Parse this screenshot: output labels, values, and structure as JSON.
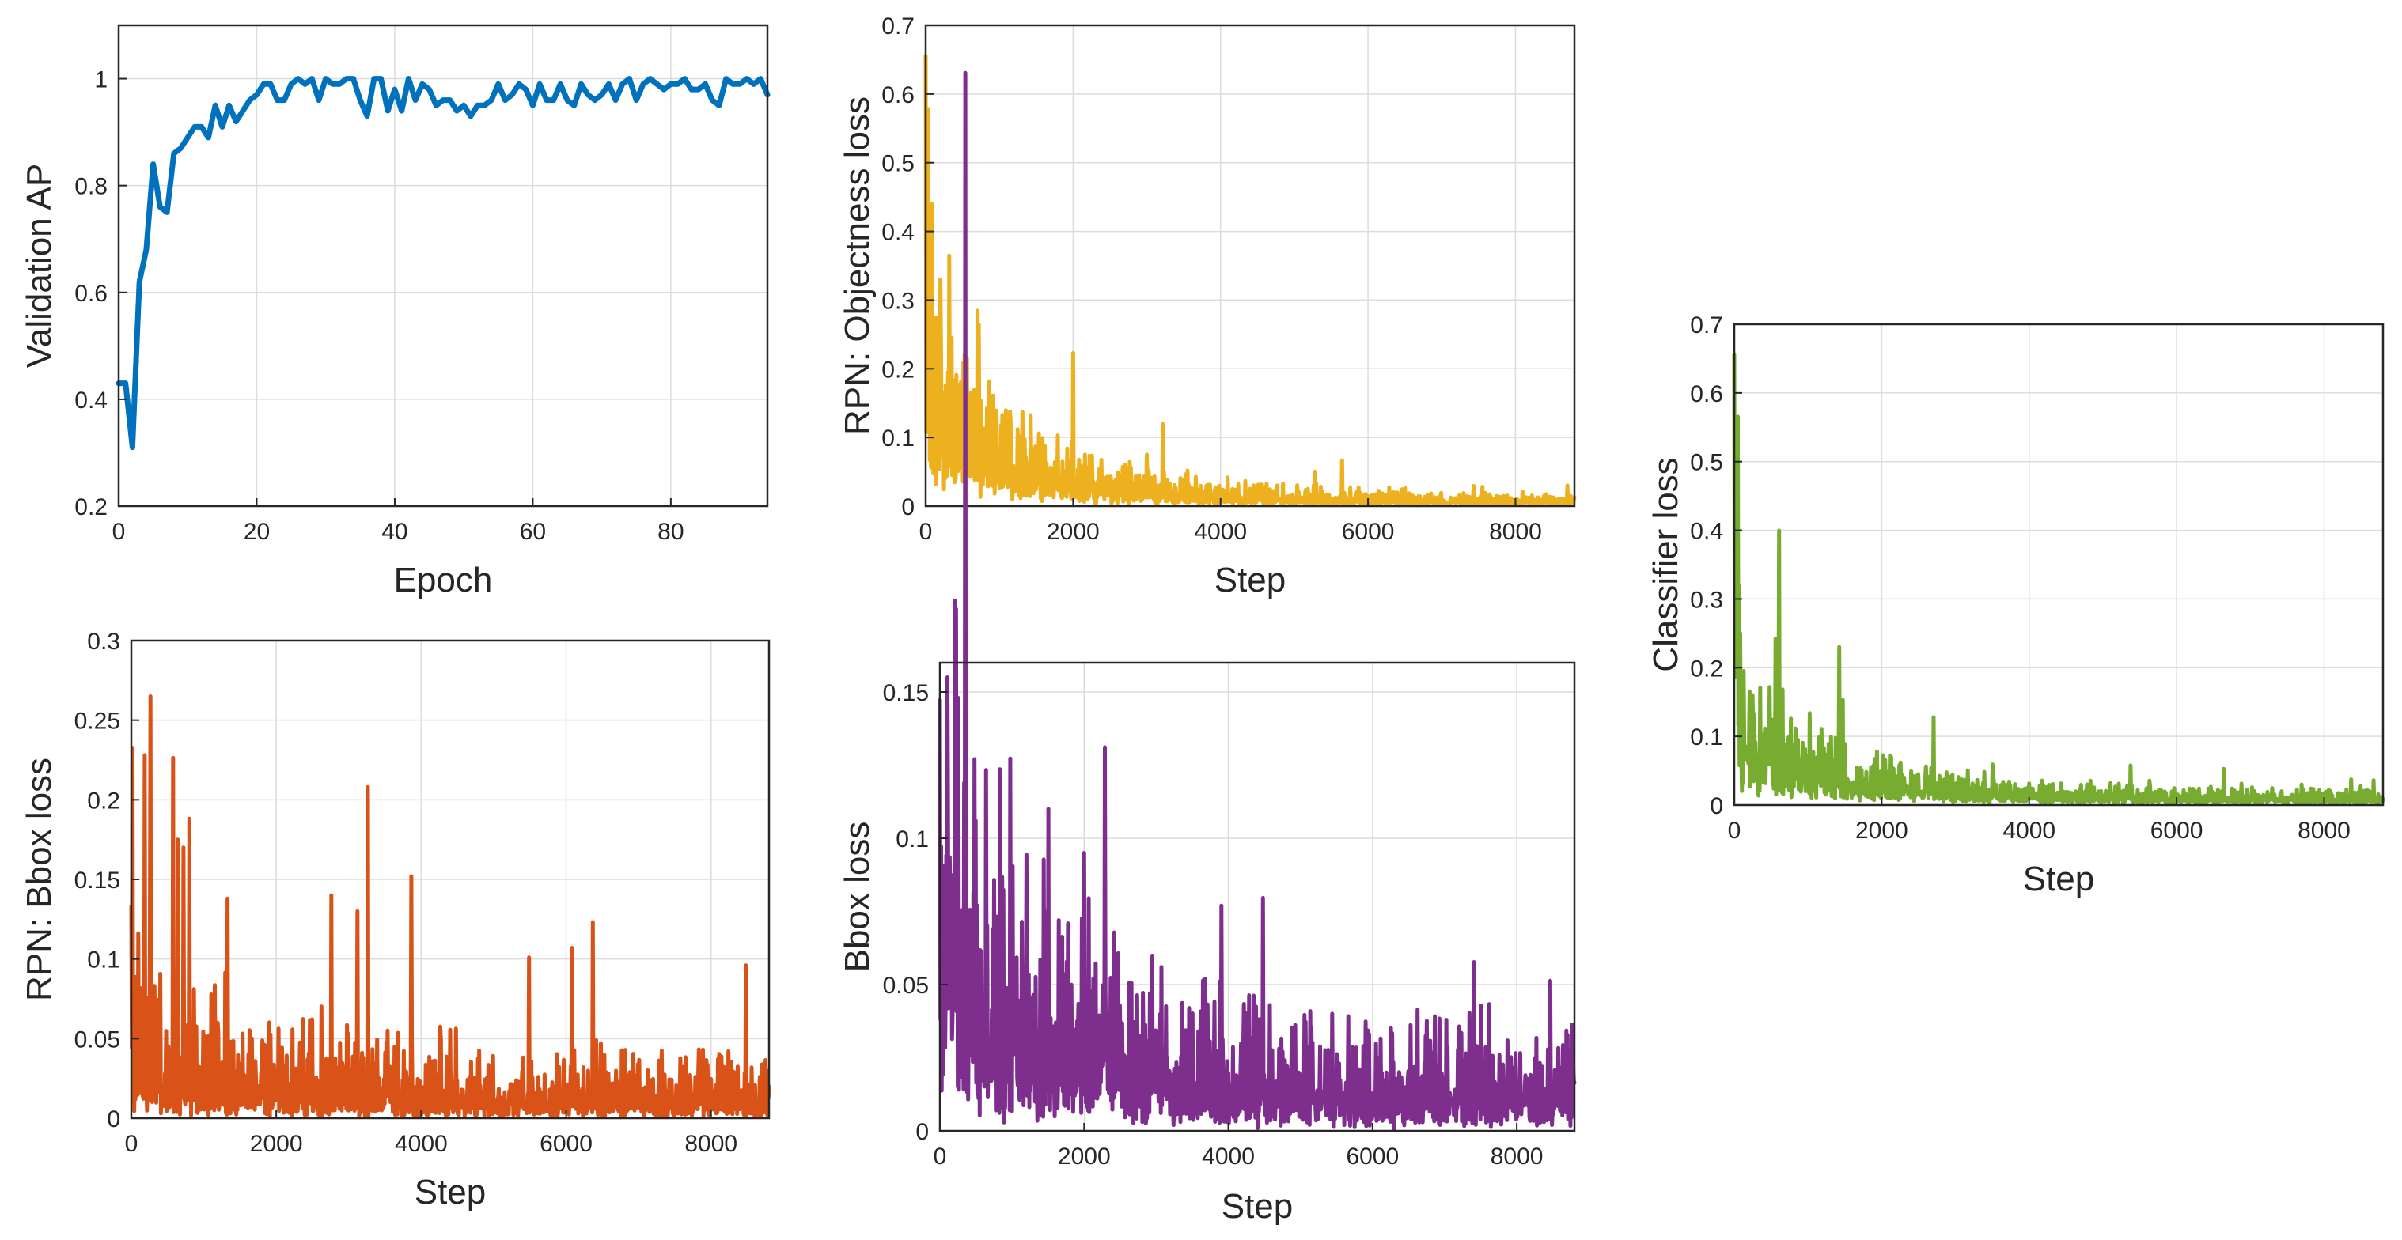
{
  "chart_data": [
    {
      "id": "validation-ap",
      "type": "line",
      "color": "#0072BD",
      "xlabel": "Epoch",
      "ylabel": "Validation AP",
      "xlim": [
        0,
        94
      ],
      "ylim": [
        0.2,
        1.1
      ],
      "xticks": [
        0,
        20,
        40,
        60,
        80
      ],
      "xtick_labels": [
        "0",
        "20",
        "40",
        "60",
        "80"
      ],
      "yticks": [
        0.2,
        0.4,
        0.6,
        0.8,
        1.0
      ],
      "ytick_labels": [
        "0.2",
        "0.4",
        "0.6",
        "0.8",
        "1"
      ],
      "x": [
        0,
        1,
        2,
        3,
        4,
        5,
        6,
        7,
        8,
        9,
        10,
        11,
        12,
        13,
        14,
        15,
        16,
        17,
        18,
        19,
        20,
        21,
        22,
        23,
        24,
        25,
        26,
        27,
        28,
        29,
        30,
        31,
        32,
        33,
        34,
        35,
        36,
        37,
        38,
        39,
        40,
        41,
        42,
        43,
        44,
        45,
        46,
        47,
        48,
        49,
        50,
        51,
        52,
        53,
        54,
        55,
        56,
        57,
        58,
        59,
        60,
        61,
        62,
        63,
        64,
        65,
        66,
        67,
        68,
        69,
        70,
        71,
        72,
        73,
        74,
        75,
        76,
        77,
        78,
        79,
        80,
        81,
        82,
        83,
        84,
        85,
        86,
        87,
        88,
        89,
        90,
        91,
        92,
        93,
        94
      ],
      "y": [
        0.43,
        0.43,
        0.31,
        0.62,
        0.68,
        0.84,
        0.76,
        0.75,
        0.86,
        0.87,
        0.89,
        0.91,
        0.91,
        0.89,
        0.95,
        0.91,
        0.95,
        0.92,
        0.94,
        0.96,
        0.97,
        0.99,
        0.99,
        0.96,
        0.96,
        0.99,
        1.0,
        0.99,
        1.0,
        0.96,
        1.0,
        0.99,
        0.99,
        1.0,
        1.0,
        0.96,
        0.93,
        1.0,
        1.0,
        0.94,
        0.98,
        0.94,
        1.0,
        0.96,
        0.99,
        0.98,
        0.95,
        0.96,
        0.96,
        0.94,
        0.95,
        0.93,
        0.95,
        0.95,
        0.96,
        0.99,
        0.96,
        0.97,
        0.99,
        0.98,
        0.95,
        0.99,
        0.96,
        0.96,
        0.99,
        0.96,
        0.95,
        0.99,
        0.97,
        0.96,
        0.97,
        0.99,
        0.96,
        0.99,
        1.0,
        0.96,
        0.99,
        1.0,
        0.99,
        0.98,
        0.99,
        0.99,
        1.0,
        0.98,
        0.98,
        0.99,
        0.96,
        0.95,
        1.0,
        0.99,
        0.99,
        1.0,
        0.99,
        1.0,
        0.97
      ]
    },
    {
      "id": "rpn-objectness-loss",
      "type": "line",
      "color": "#EDB120",
      "xlabel": "Step",
      "ylabel": "RPN: Objectness loss",
      "xlim": [
        0,
        8800
      ],
      "ylim": [
        0,
        0.7
      ],
      "xticks": [
        0,
        2000,
        4000,
        6000,
        8000
      ],
      "xtick_labels": [
        "0",
        "2000",
        "4000",
        "6000",
        "8000"
      ],
      "yticks": [
        0,
        0.1,
        0.2,
        0.3,
        0.4,
        0.5,
        0.6,
        0.7
      ],
      "ytick_labels": [
        "0",
        "0.1",
        "0.2",
        "0.3",
        "0.4",
        "0.5",
        "0.6",
        "0.7"
      ],
      "steps": 8800,
      "profile": {
        "peak": 0.69,
        "early_decay": 0.2,
        "late_level": 0.012,
        "noise": 0.5,
        "spikes": [
          [
            80,
            0.44
          ],
          [
            200,
            0.33
          ],
          [
            450,
            0.15
          ],
          [
            1600,
            0.08
          ],
          [
            2700,
            0.06
          ],
          [
            3000,
            0.075
          ],
          [
            4500,
            0.03
          ],
          [
            8700,
            0.03
          ]
        ]
      }
    },
    {
      "id": "rpn-bbox-loss",
      "type": "line",
      "color": "#D95319",
      "xlabel": "Step",
      "ylabel": "RPN: Bbox loss",
      "xlim": [
        0,
        8800
      ],
      "ylim": [
        0,
        0.3
      ],
      "xticks": [
        0,
        2000,
        4000,
        6000,
        8000
      ],
      "xtick_labels": [
        "0",
        "2000",
        "4000",
        "6000",
        "8000"
      ],
      "yticks": [
        0,
        0.05,
        0.1,
        0.15,
        0.2,
        0.25,
        0.3
      ],
      "ytick_labels": [
        "0",
        "0.05",
        "0.1",
        "0.15",
        "0.2",
        "0.25",
        "0.3"
      ],
      "steps": 8800,
      "profile": {
        "peak": 0.14,
        "early_decay": 0.06,
        "late_level": 0.02,
        "noise": 1.2,
        "spikes": [
          [
            180,
            0.228
          ],
          [
            260,
            0.265
          ],
          [
            640,
            0.175
          ],
          [
            720,
            0.17
          ],
          [
            1330,
            0.138
          ],
          [
            3260,
            0.208
          ],
          [
            2760,
            0.14
          ],
          [
            3120,
            0.13
          ],
          [
            3860,
            0.152
          ],
          [
            6080,
            0.107
          ],
          [
            8480,
            0.096
          ]
        ]
      }
    },
    {
      "id": "bbox-loss",
      "type": "line",
      "color": "#7E2F8E",
      "xlabel": "Step",
      "ylabel": "Bbox loss",
      "xlim": [
        0,
        8800
      ],
      "ylim": [
        0,
        0.16
      ],
      "xticks": [
        0,
        2000,
        4000,
        6000,
        8000
      ],
      "xtick_labels": [
        "0",
        "2000",
        "4000",
        "6000",
        "8000"
      ],
      "yticks": [
        0,
        0.05,
        0.1,
        0.15
      ],
      "ytick_labels": [
        "0",
        "0.05",
        "0.1",
        "0.15"
      ],
      "steps": 8800,
      "profile": {
        "peak": 0.155,
        "early_decay": 0.09,
        "late_level": 0.02,
        "noise": 0.9,
        "spikes": [
          [
            100,
            0.155
          ],
          [
            1500,
            0.11
          ],
          [
            2000,
            0.095
          ]
        ]
      }
    },
    {
      "id": "classifier-loss",
      "type": "line",
      "color": "#77AC30",
      "xlabel": "Step",
      "ylabel": "Classifier loss",
      "xlim": [
        0,
        8800
      ],
      "ylim": [
        0,
        0.7
      ],
      "xticks": [
        0,
        2000,
        4000,
        6000,
        8000
      ],
      "xtick_labels": [
        "0",
        "2000",
        "4000",
        "6000",
        "8000"
      ],
      "yticks": [
        0,
        0.1,
        0.2,
        0.3,
        0.4,
        0.5,
        0.6,
        0.7
      ],
      "ytick_labels": [
        "0",
        "0.1",
        "0.2",
        "0.3",
        "0.4",
        "0.5",
        "0.6",
        "0.7"
      ],
      "steps": 8800,
      "profile": {
        "peak": 0.69,
        "early_decay": 0.15,
        "late_level": 0.015,
        "noise": 0.5,
        "spikes": [
          [
            60,
            0.32
          ],
          [
            250,
            0.16
          ],
          [
            1000,
            0.07
          ]
        ]
      }
    }
  ]
}
